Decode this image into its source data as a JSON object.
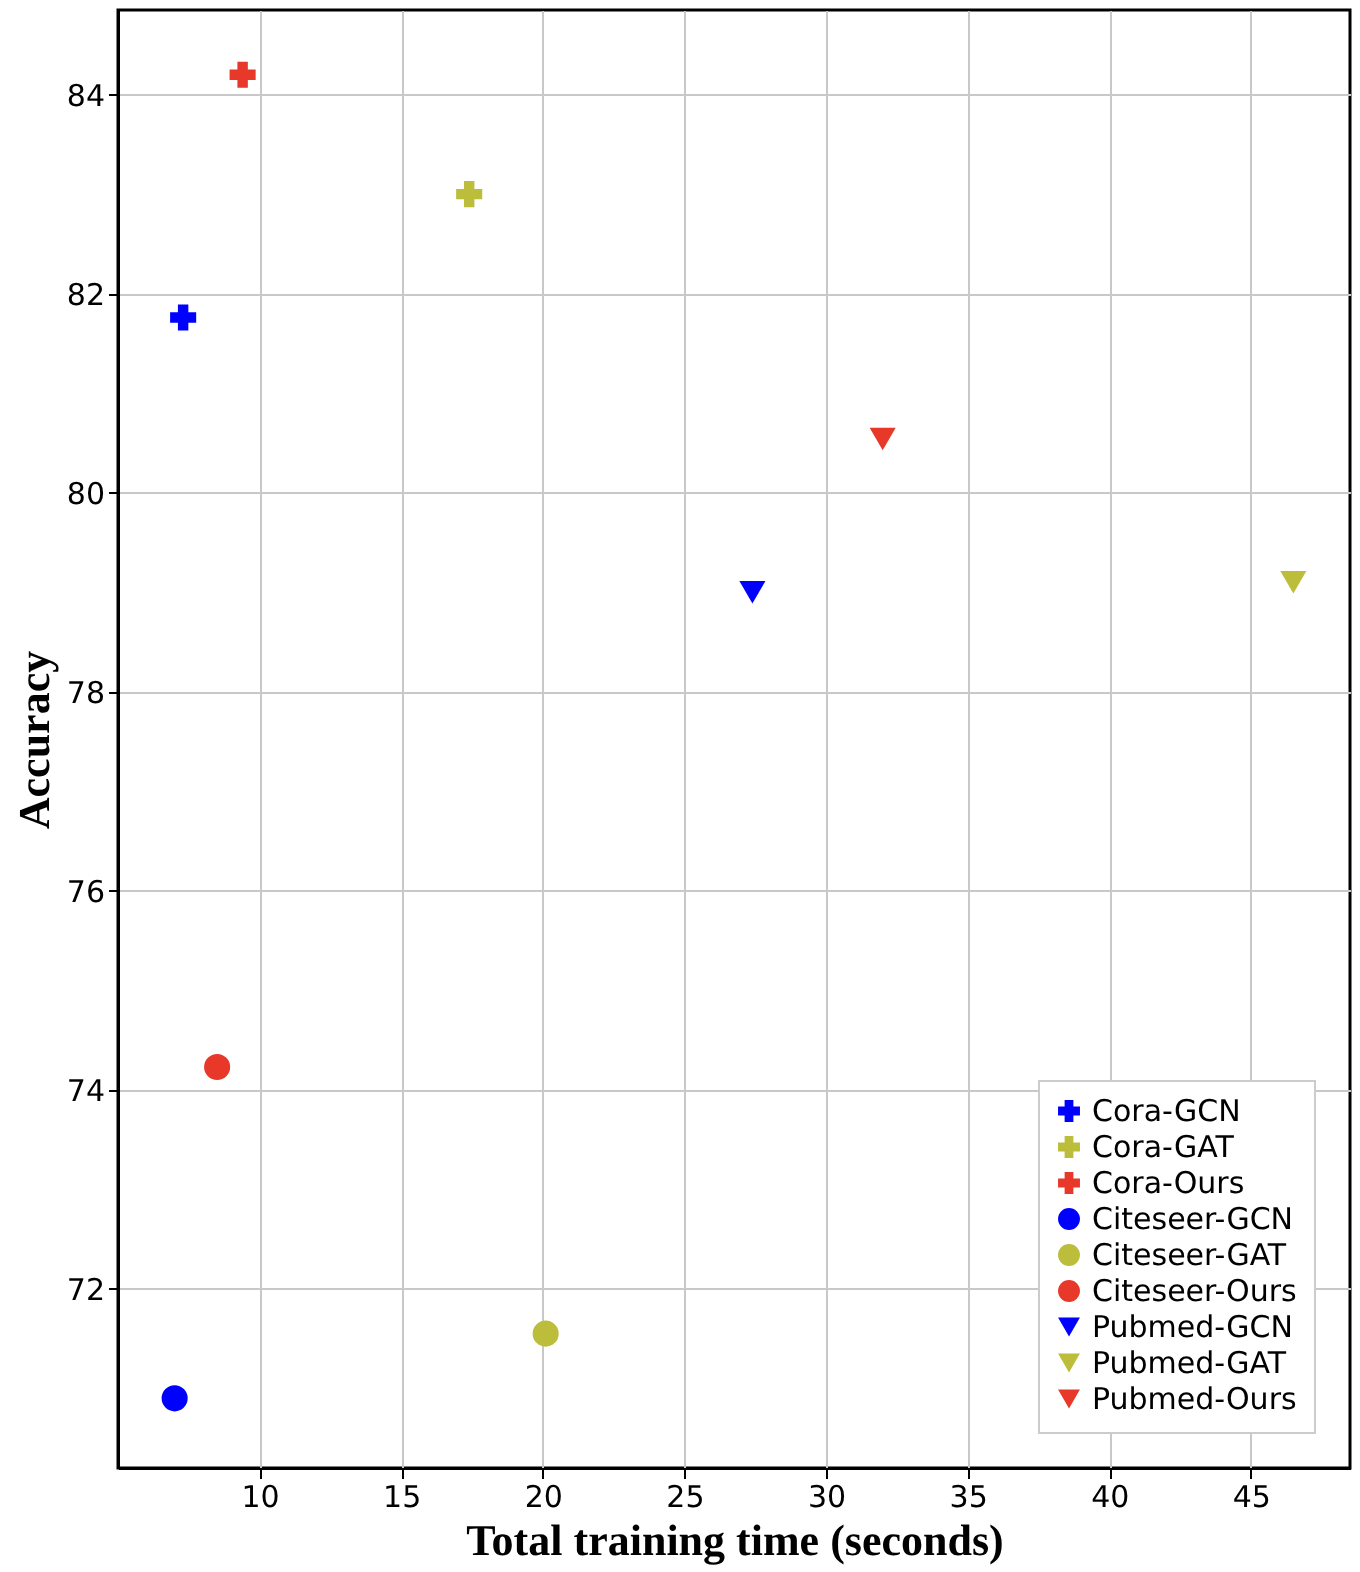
{
  "chart_data": {
    "type": "scatter",
    "xlabel": "Total training time (seconds)",
    "ylabel": "Accuracy",
    "xlim": [
      5,
      48.5
    ],
    "ylim": [
      70.2,
      84.85
    ],
    "xticks": [
      10,
      15,
      20,
      25,
      30,
      35,
      40,
      45
    ],
    "yticks": [
      72,
      74,
      76,
      78,
      80,
      82,
      84
    ],
    "grid": true,
    "legend": "bottom right",
    "series": [
      {
        "name": "Cora-GCN",
        "color": "#0000ff",
        "marker": "cross",
        "x": [
          7.3
        ],
        "values": [
          81.76
        ]
      },
      {
        "name": "Cora-GAT",
        "color": "#bcbd3a",
        "marker": "cross",
        "x": [
          17.4
        ],
        "values": [
          83.0
        ]
      },
      {
        "name": "Cora-Ours",
        "color": "#e8382a",
        "marker": "cross",
        "x": [
          9.4
        ],
        "values": [
          84.2
        ]
      },
      {
        "name": "Citeseer-GCN",
        "color": "#0000ff",
        "marker": "circle",
        "x": [
          7.0
        ],
        "values": [
          70.9
        ]
      },
      {
        "name": "Citeseer-GAT",
        "color": "#bcbd3a",
        "marker": "circle",
        "x": [
          20.1
        ],
        "values": [
          71.55
        ]
      },
      {
        "name": "Citeseer-Ours",
        "color": "#e8382a",
        "marker": "circle",
        "x": [
          8.5
        ],
        "values": [
          74.23
        ]
      },
      {
        "name": "Pubmed-GCN",
        "color": "#0000ff",
        "marker": "triangle",
        "x": [
          27.4
        ],
        "values": [
          79.0
        ]
      },
      {
        "name": "Pubmed-GAT",
        "color": "#bcbd3a",
        "marker": "triangle",
        "x": [
          46.5
        ],
        "values": [
          79.1
        ]
      },
      {
        "name": "Pubmed-Ours",
        "color": "#e8382a",
        "marker": "triangle",
        "x": [
          32.0
        ],
        "values": [
          80.54
        ]
      }
    ]
  }
}
